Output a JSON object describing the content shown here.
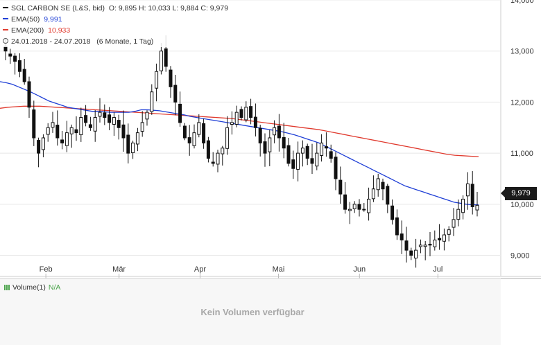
{
  "legend": {
    "title": "SGL CARBON SE (L&S, bid)",
    "ohlc": "O: 9,895  H: 10,033  L: 9,884  C: 9,979",
    "ema50_label": "EMA(50)",
    "ema50_value": "9,991",
    "ema200_label": "EMA(200)",
    "ema200_value": "10,933",
    "range": "24.01.2018 - 24.07.2018",
    "period": "(6 Monate, 1 Tag)"
  },
  "price_tag": "9,979",
  "volume": {
    "label": "Volume(1)",
    "value": "N/A",
    "message": "Kein Volumen verfügbar"
  },
  "colors": {
    "ema50": "#1f3fd6",
    "ema200": "#e03a2e",
    "candle": "#111111",
    "grid": "#e8e8e8"
  },
  "chart_data": {
    "type": "candlestick",
    "ylim": [
      8.6,
      14.0
    ],
    "y_ticks": [
      "9,000",
      "10,000",
      "11,000",
      "12,000",
      "13,000",
      "14,000"
    ],
    "y_tick_values": [
      9,
      10,
      11,
      12,
      13,
      14
    ],
    "x_ticks": [
      "Feb",
      "Mär",
      "Apr",
      "Mai",
      "Jun",
      "Jul"
    ],
    "x_tick_dates": [
      "2018-02-01",
      "2018-03-01",
      "2018-04-01",
      "2018-05-01",
      "2018-06-01",
      "2018-07-01"
    ],
    "date_range": [
      "2018-01-24",
      "2018-07-24"
    ],
    "closes": [
      13.0,
      12.9,
      12.8,
      12.6,
      12.4,
      11.9,
      11.3,
      11.0,
      11.3,
      11.5,
      11.6,
      11.3,
      11.2,
      11.4,
      11.5,
      11.4,
      11.7,
      11.6,
      11.5,
      11.7,
      11.8,
      11.7,
      11.6,
      11.7,
      11.5,
      11.3,
      11.0,
      11.2,
      11.4,
      11.6,
      11.8,
      12.2,
      12.6,
      13.0,
      12.7,
      12.3,
      12.0,
      11.6,
      11.3,
      11.2,
      11.4,
      11.6,
      11.2,
      10.9,
      10.8,
      11.0,
      11.1,
      11.5,
      11.6,
      11.8,
      11.7,
      11.9,
      11.7,
      11.5,
      11.2,
      11.0,
      11.3,
      11.5,
      11.3,
      11.1,
      10.8,
      10.7,
      11.0,
      11.1,
      10.9,
      10.8,
      11.0,
      11.2,
      11.1,
      10.9,
      10.5,
      10.2,
      9.9,
      9.9,
      10.0,
      9.9,
      9.9,
      10.1,
      10.3,
      10.5,
      10.3,
      10.0,
      9.7,
      9.4,
      9.3,
      9.1,
      9.0,
      9.1,
      9.2,
      9.2,
      9.2,
      9.3,
      9.3,
      9.4,
      9.5,
      9.7,
      9.9,
      10.1,
      10.4,
      9.95,
      9.979
    ],
    "ema50": [
      12.4,
      12.38,
      12.35,
      12.3,
      12.25,
      12.2,
      12.14,
      12.08,
      12.02,
      11.98,
      11.94,
      11.9,
      11.88,
      11.86,
      11.84,
      11.82,
      11.82,
      11.81,
      11.8,
      11.8,
      11.8,
      11.8,
      11.82,
      11.85,
      11.85,
      11.84,
      11.83,
      11.81,
      11.79,
      11.77,
      11.75,
      11.72,
      11.7,
      11.68,
      11.66,
      11.64,
      11.62,
      11.6,
      11.58,
      11.56,
      11.54,
      11.52,
      11.5,
      11.48,
      11.46,
      11.44,
      11.42,
      11.39,
      11.36,
      11.32,
      11.28,
      11.24,
      11.2,
      11.14,
      11.08,
      11.02,
      10.96,
      10.9,
      10.84,
      10.78,
      10.72,
      10.66,
      10.6,
      10.54,
      10.48,
      10.42,
      10.36,
      10.32,
      10.28,
      10.24,
      10.2,
      10.16,
      10.12,
      10.08,
      10.04,
      10.02,
      10.0,
      9.99,
      9.991
    ],
    "ema200": [
      11.88,
      11.9,
      11.91,
      11.92,
      11.92,
      11.92,
      11.91,
      11.9,
      11.89,
      11.88,
      11.87,
      11.86,
      11.85,
      11.84,
      11.83,
      11.82,
      11.81,
      11.8,
      11.79,
      11.78,
      11.77,
      11.76,
      11.75,
      11.74,
      11.73,
      11.72,
      11.71,
      11.7,
      11.69,
      11.68,
      11.66,
      11.64,
      11.62,
      11.6,
      11.58,
      11.56,
      11.54,
      11.52,
      11.5,
      11.48,
      11.46,
      11.43,
      11.4,
      11.37,
      11.34,
      11.31,
      11.28,
      11.25,
      11.22,
      11.19,
      11.16,
      11.13,
      11.1,
      11.07,
      11.04,
      11.01,
      10.98,
      10.96,
      10.95,
      10.94,
      10.933
    ]
  }
}
